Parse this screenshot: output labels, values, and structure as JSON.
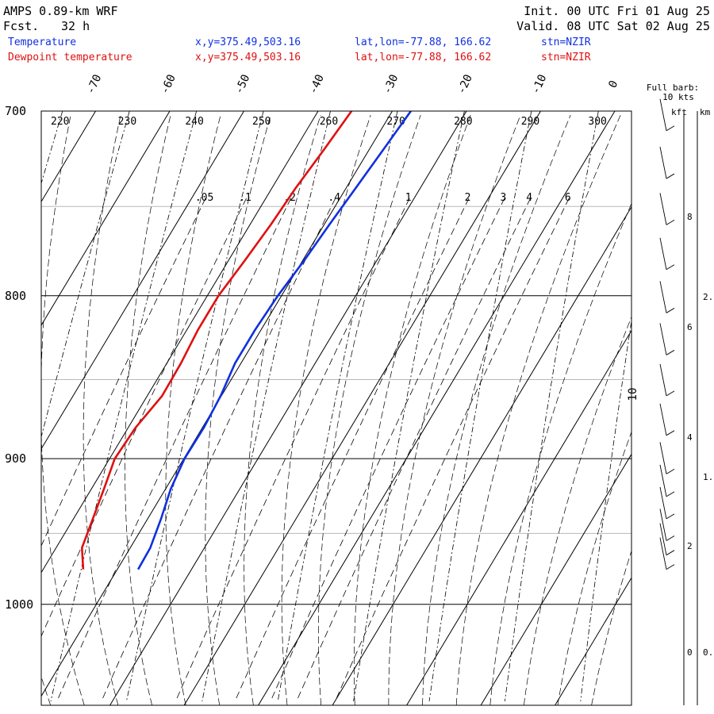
{
  "header": {
    "model": "AMPS 0.89-km WRF",
    "fcst_label": "Fcst.",
    "fcst_value": "32 h",
    "init": "Init. 00 UTC Fri 01 Aug 25",
    "valid": "Valid. 08 UTC Sat 02 Aug 25"
  },
  "legend": [
    {
      "name": "Temperature",
      "coords": "x,y=375.49,503.16",
      "latlon": "lat,lon=-77.88, 166.62",
      "stn": "stn=NZIR",
      "color": "#1030e0"
    },
    {
      "name": "Dewpoint temperature",
      "coords": "x,y=375.49,503.16",
      "latlon": "lat,lon=-77.88, 166.62",
      "stn": "stn=NZIR",
      "color": "#e01010"
    }
  ],
  "barb_legend": {
    "line1": "Full barb:",
    "line2": "10 kts"
  },
  "height_axis": {
    "kft_label": "kft",
    "km_label": "km",
    "kft_ticks": [
      "8",
      "6",
      "4",
      "2",
      "0"
    ],
    "km_ticks": [
      "2.",
      "1.",
      "0."
    ]
  },
  "chart_data": {
    "type": "skew-t",
    "pressure_ticks": [
      "700",
      "800",
      "900",
      "1000"
    ],
    "pressure_values": [
      700,
      800,
      900,
      1000
    ],
    "temp_ticks": [
      "-70",
      "-60",
      "-50",
      "-40",
      "-30",
      "-20",
      "-10",
      "0",
      "10"
    ],
    "theta_labels": [
      "220",
      "230",
      "240",
      "250",
      "260",
      "270",
      "280",
      "290",
      "300"
    ],
    "mixing_ratio_labels": [
      ".05",
      ".1",
      ".2",
      ".4",
      "1",
      "2",
      "3",
      "4",
      "6"
    ],
    "ylim": [
      700,
      1045
    ],
    "series": [
      {
        "name": "Temperature",
        "color": "#1030e0",
        "points": [
          [
            700,
            -27.5
          ],
          [
            720,
            -28.1
          ],
          [
            740,
            -28.7
          ],
          [
            760,
            -29.3
          ],
          [
            780,
            -29.8
          ],
          [
            800,
            -30.5
          ],
          [
            820,
            -30.8
          ],
          [
            840,
            -30.8
          ],
          [
            860,
            -30.1
          ],
          [
            880,
            -29.8
          ],
          [
            900,
            -29.9
          ],
          [
            920,
            -29.3
          ],
          [
            940,
            -28.2
          ],
          [
            960,
            -27.3
          ],
          [
            975,
            -27.2
          ]
        ]
      },
      {
        "name": "Dewpoint temperature",
        "color": "#e01010",
        "points": [
          [
            700,
            -35.5
          ],
          [
            720,
            -36.1
          ],
          [
            740,
            -36.8
          ],
          [
            760,
            -37.2
          ],
          [
            780,
            -37.8
          ],
          [
            800,
            -38.5
          ],
          [
            820,
            -38.5
          ],
          [
            840,
            -38.1
          ],
          [
            860,
            -38.0
          ],
          [
            880,
            -39.0
          ],
          [
            900,
            -39.3
          ],
          [
            920,
            -38.3
          ],
          [
            940,
            -37.4
          ],
          [
            960,
            -36.5
          ],
          [
            975,
            -34.6
          ]
        ]
      }
    ]
  }
}
